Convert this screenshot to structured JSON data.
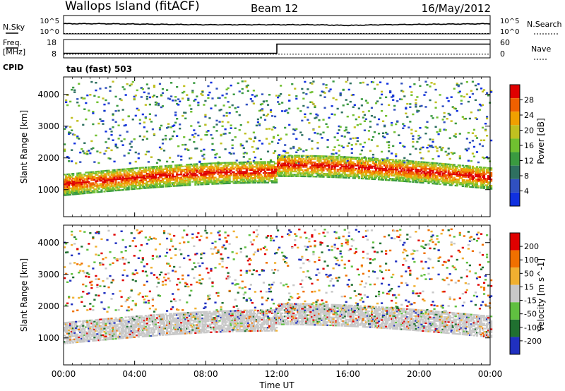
{
  "header": {
    "station": "Wallops Island (fitACF)",
    "beam": "Beam 12",
    "date": "16/May/2012"
  },
  "top_panels": {
    "nsky_label": "N.Sky",
    "nsky_ticks": [
      "10^5",
      "10^0"
    ],
    "nsearch_label": "N.Search",
    "nsearch_ticks": [
      "10^5",
      "10^0"
    ],
    "freq_label": "Freq.",
    "freq_unit": "[MHz]",
    "freq_ticks": [
      "18",
      "8"
    ],
    "nave_label": "Nave",
    "nave_ticks": [
      "60",
      "0"
    ],
    "cpid_label": "CPID",
    "cpid_value": "tau (fast) 503"
  },
  "x_axis": {
    "label": "Time UT",
    "ticks": [
      "00:00",
      "04:00",
      "08:00",
      "12:00",
      "16:00",
      "20:00",
      "00:00"
    ]
  },
  "chart_data": [
    {
      "type": "line",
      "panel": "N.Sky / N.Search",
      "x_unit": "hours UT",
      "x": [
        0,
        2,
        4,
        6,
        8,
        10,
        12,
        14,
        16,
        18,
        20,
        22,
        24
      ],
      "series": [
        {
          "name": "N.Sky",
          "values": [
            3.0,
            3.0,
            2.9,
            2.8,
            2.7,
            2.7,
            2.7,
            2.7,
            2.5,
            2.7,
            2.8,
            2.9,
            3.0
          ]
        },
        {
          "name": "N.Search",
          "values": [
            0.1,
            0.1,
            0.1,
            0.1,
            0.1,
            0.1,
            0.1,
            0.1,
            0.1,
            0.1,
            0.1,
            0.1,
            0.1
          ]
        }
      ],
      "ylim": [
        0,
        5
      ],
      "yscale": "log"
    },
    {
      "type": "line",
      "panel": "Freq. / Nave",
      "x_unit": "hours UT",
      "x": [
        0,
        12,
        12,
        24
      ],
      "series": [
        {
          "name": "Freq.",
          "values": [
            10.5,
            10.5,
            15.5,
            15.5
          ]
        },
        {
          "name": "Nave",
          "values": [
            10,
            10,
            10,
            10
          ]
        }
      ],
      "ylim": [
        8,
        18
      ]
    },
    {
      "type": "heatmap",
      "panel": "Power",
      "ylabel": "Slant Range [km]",
      "xlabel": "Time UT",
      "xlim": [
        0,
        24
      ],
      "ylim": [
        150,
        4550
      ],
      "yticks": [
        1000,
        2000,
        3000,
        4000
      ],
      "colorbar": {
        "label": "Power [dB]",
        "ticks": [
          4,
          8,
          12,
          16,
          20,
          24,
          28
        ]
      },
      "colors": [
        "#1030e0",
        "#3050c0",
        "#2e7060",
        "#3a9a40",
        "#70c030",
        "#c0c020",
        "#f0a000",
        "#f06000",
        "#e00000"
      ],
      "clim": [
        0,
        30
      ]
    },
    {
      "type": "heatmap",
      "panel": "Velocity",
      "ylabel": "Slant Range [km]",
      "xlabel": "Time UT",
      "xlim": [
        0,
        24
      ],
      "ylim": [
        150,
        4550
      ],
      "yticks": [
        1000,
        2000,
        3000,
        4000
      ],
      "colorbar": {
        "label": "Velocity [m s^-1]",
        "ticks": [
          200,
          100,
          50,
          15,
          -15,
          -50,
          -100,
          -200
        ]
      },
      "colors": [
        "#2030c0",
        "#207030",
        "#60c040",
        "#c8c8c8",
        "#f0b030",
        "#f07000",
        "#e00000"
      ],
      "clim": [
        -250,
        250
      ]
    }
  ]
}
